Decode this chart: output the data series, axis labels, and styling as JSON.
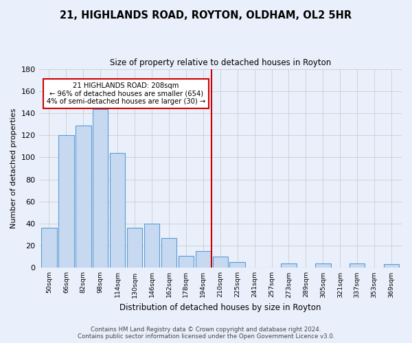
{
  "title": "21, HIGHLANDS ROAD, ROYTON, OLDHAM, OL2 5HR",
  "subtitle": "Size of property relative to detached houses in Royton",
  "xlabel": "Distribution of detached houses by size in Royton",
  "ylabel": "Number of detached properties",
  "bar_labels": [
    "50sqm",
    "66sqm",
    "82sqm",
    "98sqm",
    "114sqm",
    "130sqm",
    "146sqm",
    "162sqm",
    "178sqm",
    "194sqm",
    "210sqm",
    "225sqm",
    "241sqm",
    "257sqm",
    "273sqm",
    "289sqm",
    "305sqm",
    "321sqm",
    "337sqm",
    "353sqm",
    "369sqm"
  ],
  "bar_values": [
    36,
    120,
    129,
    144,
    104,
    36,
    40,
    27,
    11,
    15,
    10,
    5,
    0,
    0,
    4,
    0,
    4,
    0,
    4,
    0,
    3
  ],
  "bar_color": "#c6d9f0",
  "bar_edge_color": "#5b9bd5",
  "grid_color": "#cccccc",
  "vline_color": "#cc0000",
  "annotation_title": "21 HIGHLANDS ROAD: 208sqm",
  "annotation_line1": "← 96% of detached houses are smaller (654)",
  "annotation_line2": "4% of semi-detached houses are larger (30) →",
  "annotation_box_color": "#ffffff",
  "annotation_box_edge": "#cc0000",
  "ylim": [
    0,
    180
  ],
  "yticks": [
    0,
    20,
    40,
    60,
    80,
    100,
    120,
    140,
    160,
    180
  ],
  "footer_line1": "Contains HM Land Registry data © Crown copyright and database right 2024.",
  "footer_line2": "Contains public sector information licensed under the Open Government Licence v3.0.",
  "background_color": "#eaf0fb"
}
